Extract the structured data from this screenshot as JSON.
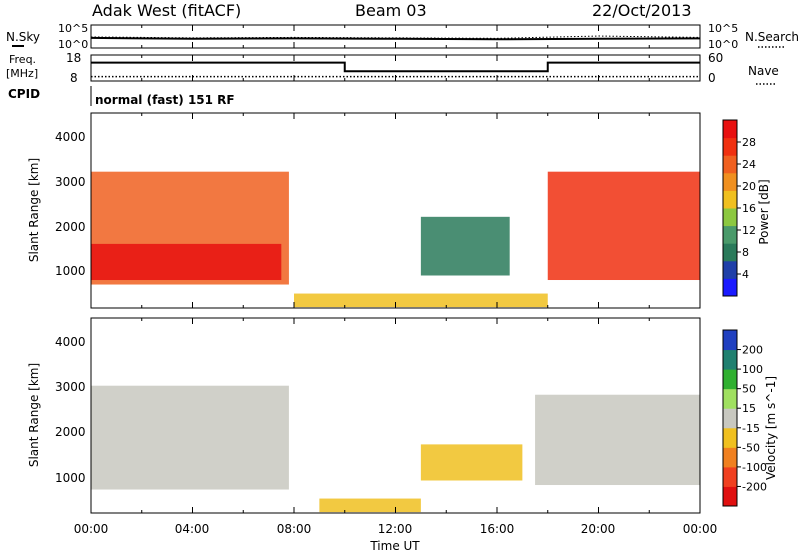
{
  "header": {
    "station": "Adak West (fitACF)",
    "beam": "Beam 03",
    "date": "22/Oct/2013"
  },
  "top_panel": {
    "left_label": "N.Sky",
    "left_ticks": [
      "10^5",
      "10^0"
    ],
    "right_ticks": [
      "10^5",
      "10^0"
    ],
    "right_label": "N.Search"
  },
  "freq_panel": {
    "left_label_line1": "Freq.",
    "left_label_line2": "[MHz]",
    "left_ticks": [
      "18",
      "8"
    ],
    "right_ticks": [
      "60",
      "0"
    ],
    "right_label": "Nave",
    "cpid_label": "CPID",
    "cpid_text": "normal (fast) 151 RF"
  },
  "x_axis": {
    "label": "Time UT",
    "ticks": [
      "00:00",
      "04:00",
      "08:00",
      "12:00",
      "16:00",
      "20:00",
      "00:00"
    ]
  },
  "power_panel": {
    "ylabel": "Slant Range [km]",
    "yticks": [
      "1000",
      "2000",
      "3000",
      "4000"
    ],
    "colorbar_label": "Power [dB]",
    "colorbar_ticks": [
      "4",
      "8",
      "12",
      "16",
      "20",
      "24",
      "28"
    ],
    "colorbar_colors": [
      "#1a1aff",
      "#1f3fa8",
      "#2a7a5a",
      "#4a9a6a",
      "#8cc840",
      "#f0c020",
      "#f09020",
      "#f06020",
      "#f03010",
      "#e81010"
    ]
  },
  "velocity_panel": {
    "ylabel": "Slant Range [km]",
    "yticks": [
      "1000",
      "2000",
      "3000",
      "4000"
    ],
    "colorbar_label": "Velocity [m s^-1]",
    "colorbar_ticks": [
      "200",
      "100",
      "50",
      "15",
      "-15",
      "-50",
      "-100",
      "-200"
    ],
    "colorbar_colors": [
      "#2040c0",
      "#208070",
      "#30b030",
      "#a0e060",
      "#c8c8c0",
      "#f0c020",
      "#f08020",
      "#f04020",
      "#e01010"
    ]
  },
  "chart_data": [
    {
      "type": "line",
      "panel": "sky-noise",
      "x": [
        0,
        4,
        8,
        12,
        16,
        20,
        24
      ],
      "series": [
        {
          "name": "N.Sky",
          "values": [
            2.2,
            2.0,
            2.1,
            2.0,
            1.9,
            2.0,
            2.1
          ]
        },
        {
          "name": "N.Search",
          "values": [
            2.4,
            2.2,
            2.3,
            2.2,
            2.1,
            2.6,
            2.3
          ]
        }
      ],
      "xlim": [
        0,
        24
      ]
    },
    {
      "type": "line",
      "panel": "frequency",
      "x": [
        0,
        10,
        10,
        18,
        18,
        24
      ],
      "series": [
        {
          "name": "Freq.",
          "values": [
            14.5,
            14.5,
            10.5,
            10.5,
            14.5,
            14.5
          ]
        },
        {
          "name": "Nave",
          "values": [
            10,
            10,
            10,
            10,
            10,
            10
          ]
        }
      ],
      "xlim": [
        0,
        24
      ]
    },
    {
      "type": "heatmap",
      "panel": "power",
      "xlim": [
        0,
        24
      ],
      "ylim": [
        180,
        4500
      ],
      "zlim": [
        0,
        30
      ],
      "regions": [
        {
          "t_start": 0.0,
          "t_end": 7.8,
          "r_low": 700,
          "r_high": 3200,
          "z": 22
        },
        {
          "t_start": 0.0,
          "t_end": 7.5,
          "r_low": 800,
          "r_high": 1600,
          "z": 28
        },
        {
          "t_start": 13.0,
          "t_end": 16.5,
          "r_low": 900,
          "r_high": 2200,
          "z": 8
        },
        {
          "t_start": 18.0,
          "t_end": 24.0,
          "r_low": 800,
          "r_high": 3200,
          "z": 26
        },
        {
          "t_start": 8.0,
          "t_end": 18.0,
          "r_low": 200,
          "r_high": 500,
          "z": 16
        }
      ]
    },
    {
      "type": "heatmap",
      "panel": "velocity",
      "xlim": [
        0,
        24
      ],
      "ylim": [
        180,
        4500
      ],
      "zlim": [
        -200,
        200
      ],
      "regions": [
        {
          "t_start": 0.0,
          "t_end": 7.8,
          "r_low": 700,
          "r_high": 3000,
          "z": 0
        },
        {
          "t_start": 13.0,
          "t_end": 17.0,
          "r_low": 900,
          "r_high": 1700,
          "z": -30
        },
        {
          "t_start": 17.5,
          "t_end": 24.0,
          "r_low": 800,
          "r_high": 2800,
          "z": 0
        },
        {
          "t_start": 9.0,
          "t_end": 13.0,
          "r_low": 200,
          "r_high": 500,
          "z": -50
        }
      ]
    }
  ]
}
